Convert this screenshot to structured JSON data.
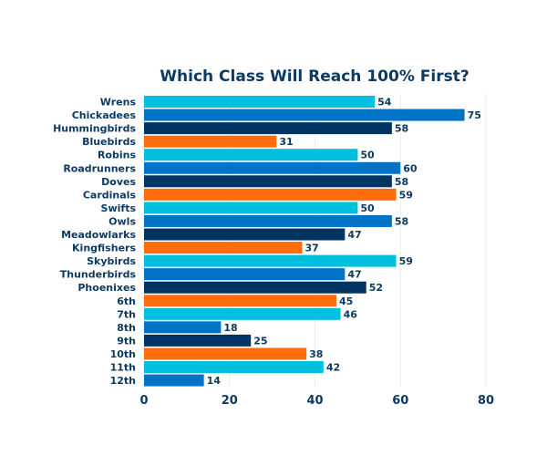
{
  "chart_data": {
    "type": "bar",
    "orientation": "horizontal",
    "title": "Which Class Will Reach 100% First?",
    "xlabel": "",
    "ylabel": "",
    "xlim": [
      0,
      80
    ],
    "xticks": [
      0,
      20,
      40,
      60,
      80
    ],
    "grid": true,
    "legend": "none",
    "palette": [
      "#00c0dd",
      "#0073c6",
      "#003462",
      "#ff6c0c"
    ],
    "categories": [
      "Wrens",
      "Chickadees",
      "Hummingbirds",
      "Bluebirds",
      "Robins",
      "Roadrunners",
      "Doves",
      "Cardinals",
      "Swifts",
      "Owls",
      "Meadowlarks",
      "Kingfishers",
      "Skybirds",
      "Thunderbirds",
      "Phoenixes",
      "6th",
      "7th",
      "8th",
      "9th",
      "10th",
      "11th",
      "12th"
    ],
    "values": [
      54,
      75,
      58,
      31,
      50,
      60,
      58,
      59,
      50,
      58,
      47,
      37,
      59,
      47,
      52,
      45,
      46,
      18,
      25,
      38,
      42,
      14
    ]
  }
}
